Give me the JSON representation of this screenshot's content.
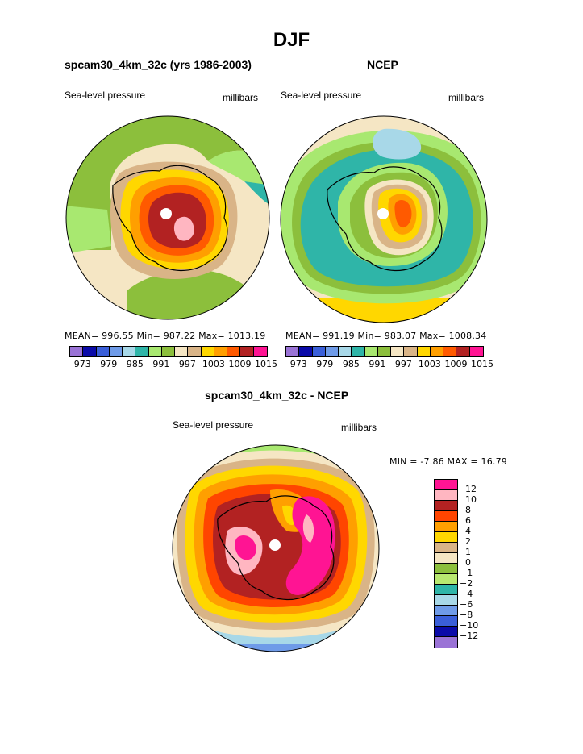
{
  "title": "DJF",
  "panels": {
    "left": {
      "title": "spcam30_4km_32c (yrs 1986-2003)",
      "field": "Sea-level pressure",
      "units": "millibars",
      "stats": "MEAN= 996.55  Min= 987.22  Max= 1013.19"
    },
    "right": {
      "title": "NCEP",
      "field": "Sea-level pressure",
      "units": "millibars",
      "stats": "MEAN= 991.19  Min= 983.07  Max= 1008.34"
    },
    "diff": {
      "title": "spcam30_4km_32c - NCEP",
      "field": "Sea-level pressure",
      "units": "millibars",
      "stats": "MIN =  -7.86 MAX =  16.79"
    }
  },
  "colors": {
    "abs_scale": [
      "#9a73d6",
      "#0a0aa8",
      "#3a5fd9",
      "#6f9be8",
      "#a8d8e8",
      "#2fb5a8",
      "#a8e870",
      "#8cbf3c",
      "#f5e6c4",
      "#d9b487",
      "#ffd700",
      "#ff9f00",
      "#ff5a00",
      "#b22222",
      "#ff1493"
    ],
    "diff_scale": [
      "#ff1493",
      "#ffb6c1",
      "#b22222",
      "#ff4500",
      "#ff9f00",
      "#ffd700",
      "#d9b487",
      "#f5e6c4",
      "#8cbf3c",
      "#b8e870",
      "#2fb5a8",
      "#a8d8e8",
      "#6f9be8",
      "#3a5fd9",
      "#0a0aa8",
      "#9a73d6"
    ]
  },
  "chart_data": [
    {
      "type": "heatmap",
      "title": "spcam30_4km_32c (yrs 1986-2003)",
      "subtitle": "Sea-level pressure (millibars)",
      "mean": 996.55,
      "min": 987.22,
      "max": 1013.19,
      "colorbar_ticks": [
        "973",
        "979",
        "985",
        "991",
        "997",
        "1003",
        "1009",
        "1015"
      ],
      "levels": [
        973,
        976,
        979,
        982,
        985,
        988,
        991,
        994,
        997,
        1000,
        1003,
        1006,
        1009,
        1012,
        1015
      ]
    },
    {
      "type": "heatmap",
      "title": "NCEP",
      "subtitle": "Sea-level pressure (millibars)",
      "mean": 991.19,
      "min": 983.07,
      "max": 1008.34,
      "colorbar_ticks": [
        "973",
        "979",
        "985",
        "991",
        "997",
        "1003",
        "1009",
        "1015"
      ],
      "levels": [
        973,
        976,
        979,
        982,
        985,
        988,
        991,
        994,
        997,
        1000,
        1003,
        1006,
        1009,
        1012,
        1015
      ]
    },
    {
      "type": "heatmap",
      "title": "spcam30_4km_32c - NCEP",
      "subtitle": "Sea-level pressure (millibars)",
      "min": -7.86,
      "max": 16.79,
      "colorbar_ticks": [
        "12",
        "10",
        "8",
        "6",
        "4",
        "2",
        "1",
        "0",
        "−1",
        "−2",
        "−4",
        "−6",
        "−8",
        "−10",
        "−12"
      ]
    }
  ]
}
